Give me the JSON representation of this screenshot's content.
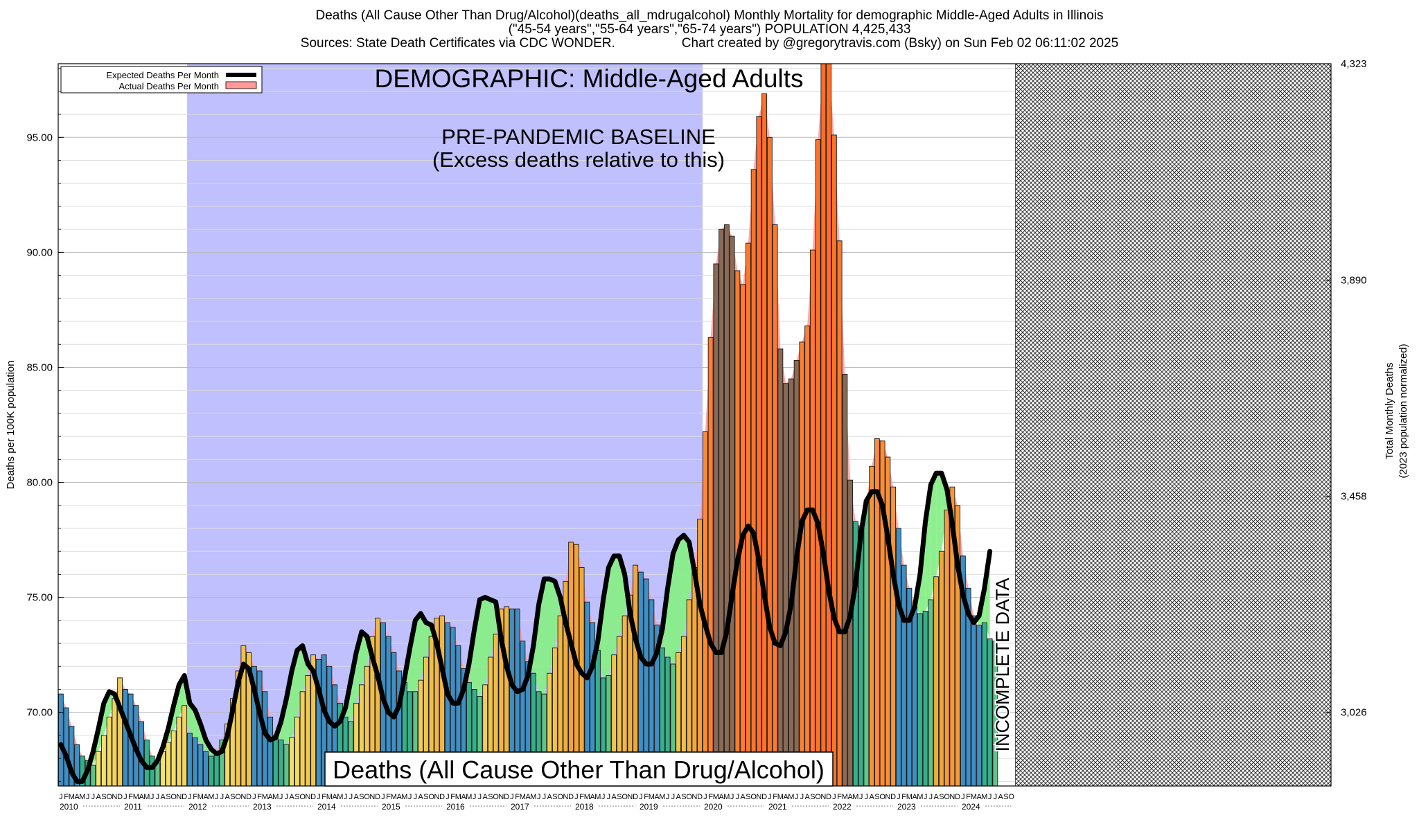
{
  "header": {
    "line1": "Deaths (All Cause Other Than Drug/Alcohol)(deaths_all_mdrugalcohol) Monthly Mortality for demographic Middle-Aged Adults in Illinois",
    "line2": "(\"45-54 years\",\"55-64 years\",\"65-74 years\") POPULATION 4,425,433",
    "sources": "Sources: State Death Certificates via CDC WONDER.",
    "credit": "Chart created by @gregorytravis.com (Bsky) on Sun Feb 02 06:11:02 2025"
  },
  "annotations": {
    "demographic": "DEMOGRAPHIC: Middle-Aged Adults",
    "baseline_line1": "PRE-PANDEMIC BASELINE",
    "baseline_line2": "(Excess deaths relative to this)",
    "measure": "Deaths (All Cause Other Than Drug/Alcohol)",
    "incomplete": "INCOMPLETE DATA"
  },
  "colors": {
    "baseline_band": "#c0c0ff",
    "expected_line": "#000000",
    "excess_fill": "#ff9a9a",
    "deficit_fill": "#88ee88",
    "bar_low": "#f4f07a",
    "bar_mid": "#f0b040",
    "bar_high": "#ff7a30",
    "bar_blue": "#3f8fc4",
    "bar_teal": "#35b08a"
  },
  "chart_data": {
    "type": "bar",
    "title": "Deaths (All Cause Other Than Drug/Alcohol)(deaths_all_mdrugalcohol) Monthly Mortality for demographic Middle-Aged Adults in Illinois",
    "xlabel": "",
    "ylabel": "Deaths per 100K population",
    "ylabel_right_line1": "Total Monthly Deaths",
    "ylabel_right_line2": "(2023 population normalized)",
    "ylim": [
      66.8,
      98.2
    ],
    "yticks": [
      "70.00",
      "75.00",
      "80.00",
      "85.00",
      "90.00",
      "95.00"
    ],
    "ytick_values": [
      70,
      75,
      80,
      85,
      90,
      95
    ],
    "right_ticks": [
      "3,026",
      "3,458",
      "3,890",
      "4,323"
    ],
    "right_tick_values": [
      3026,
      3458,
      3890,
      4323
    ],
    "grid": true,
    "legend_position": "top-left",
    "legend": [
      "Expected Deaths Per Month",
      "Actual Deaths Per Month"
    ],
    "baseline_period": [
      "2012-01",
      "2019-12"
    ],
    "incomplete_from": "2024-09",
    "start_month": "2010-01",
    "month_letters": [
      "J",
      "F",
      "M",
      "A",
      "M",
      "J",
      "J",
      "A",
      "S",
      "O",
      "N",
      "D"
    ],
    "years": [
      "2010",
      "2011",
      "2012",
      "2013",
      "2014",
      "2015",
      "2016",
      "2017",
      "2018",
      "2019",
      "2020",
      "2021",
      "2022",
      "2023",
      "2024"
    ],
    "actual": [
      70.8,
      70.2,
      69.4,
      68.6,
      68.1,
      67.9,
      67.7,
      68.3,
      69.0,
      69.8,
      70.6,
      71.5,
      71.0,
      70.8,
      70.3,
      69.6,
      68.8,
      68.1,
      67.8,
      68.3,
      68.7,
      69.2,
      69.8,
      70.3,
      69.1,
      68.9,
      68.6,
      68.3,
      68.1,
      68.3,
      68.8,
      69.5,
      70.6,
      71.8,
      72.9,
      72.6,
      72.0,
      71.8,
      70.9,
      69.8,
      69.0,
      68.8,
      68.6,
      68.9,
      69.8,
      70.9,
      71.6,
      72.5,
      72.3,
      72.5,
      72.0,
      71.2,
      70.4,
      69.8,
      69.6,
      70.4,
      71.2,
      72.0,
      73.3,
      74.1,
      73.9,
      73.3,
      72.6,
      71.8,
      71.3,
      70.9,
      70.9,
      71.4,
      72.4,
      73.3,
      74.1,
      74.2,
      73.9,
      73.7,
      72.9,
      71.9,
      71.3,
      71.0,
      70.7,
      71.2,
      72.4,
      73.4,
      74.5,
      74.6,
      74.5,
      74.5,
      73.1,
      72.2,
      71.7,
      70.9,
      70.8,
      71.7,
      72.8,
      74.2,
      75.7,
      77.4,
      77.3,
      76.3,
      74.8,
      73.9,
      72.7,
      71.5,
      71.6,
      72.5,
      73.3,
      74.2,
      75.1,
      76.4,
      76.1,
      75.8,
      74.9,
      73.8,
      72.8,
      72.4,
      72.1,
      72.6,
      73.3,
      74.9,
      76.3,
      78.4,
      82.2,
      86.3,
      89.5,
      91.0,
      91.2,
      90.7,
      89.2,
      88.6,
      90.4,
      93.6,
      95.9,
      96.9,
      95.0,
      91.2,
      85.8,
      84.3,
      84.5,
      85.3,
      86.1,
      86.8,
      90.1,
      94.9,
      98.2,
      98.2,
      95.1,
      90.5,
      84.7,
      80.1,
      78.3,
      78.1,
      79.2,
      80.7,
      81.9,
      81.8,
      81.1,
      79.8,
      78.0,
      76.4,
      75.4,
      74.6,
      74.3,
      74.4,
      74.9,
      75.9,
      77.0,
      78.8,
      79.8,
      79.0,
      76.8,
      75.4,
      74.2,
      73.8,
      73.9,
      73.2,
      73.1
    ],
    "expected": [
      68.6,
      68.1,
      67.4,
      67.0,
      67.0,
      67.5,
      68.3,
      69.3,
      70.4,
      70.9,
      70.8,
      70.2,
      69.6,
      69.0,
      68.4,
      67.9,
      67.6,
      67.6,
      67.9,
      68.5,
      69.3,
      70.3,
      71.2,
      71.6,
      70.4,
      70.1,
      69.5,
      68.8,
      68.4,
      68.2,
      68.3,
      69.0,
      70.1,
      71.3,
      72.1,
      71.9,
      71.0,
      70.0,
      69.1,
      68.8,
      68.9,
      69.6,
      70.6,
      71.8,
      72.7,
      72.9,
      72.1,
      71.8,
      71.0,
      70.1,
      69.6,
      69.4,
      69.6,
      70.2,
      71.4,
      72.6,
      73.5,
      73.3,
      72.4,
      71.6,
      70.6,
      70.0,
      69.8,
      70.3,
      71.5,
      72.8,
      74.0,
      74.3,
      73.9,
      73.8,
      73.0,
      71.9,
      70.8,
      70.4,
      70.4,
      71.0,
      72.1,
      73.6,
      74.9,
      75.0,
      74.9,
      74.8,
      73.2,
      72.0,
      71.2,
      70.9,
      71.0,
      71.6,
      72.9,
      74.7,
      75.8,
      75.8,
      75.7,
      75.0,
      73.9,
      73.0,
      72.1,
      71.7,
      71.5,
      72.0,
      73.1,
      74.9,
      76.3,
      76.8,
      76.8,
      76.0,
      74.3,
      73.2,
      72.4,
      72.1,
      72.1,
      72.6,
      73.6,
      75.4,
      76.9,
      77.5,
      77.7,
      77.4,
      76.1,
      74.7,
      73.8,
      73.0,
      72.6,
      72.6,
      73.5,
      75.1,
      76.6,
      77.7,
      78.1,
      77.8,
      76.6,
      75.1,
      73.7,
      73.0,
      72.9,
      73.5,
      74.7,
      76.7,
      78.3,
      78.8,
      78.8,
      78.2,
      76.9,
      75.3,
      74.1,
      73.5,
      73.5,
      74.2,
      75.6,
      77.8,
      79.2,
      79.6,
      79.6,
      79.0,
      77.6,
      76.0,
      74.7,
      74.0,
      74.0,
      74.6,
      76.0,
      78.3,
      79.9,
      80.4,
      80.4,
      79.7,
      78.2,
      76.4,
      75.1,
      74.3,
      73.9,
      74.2,
      75.4,
      77.0
    ]
  }
}
